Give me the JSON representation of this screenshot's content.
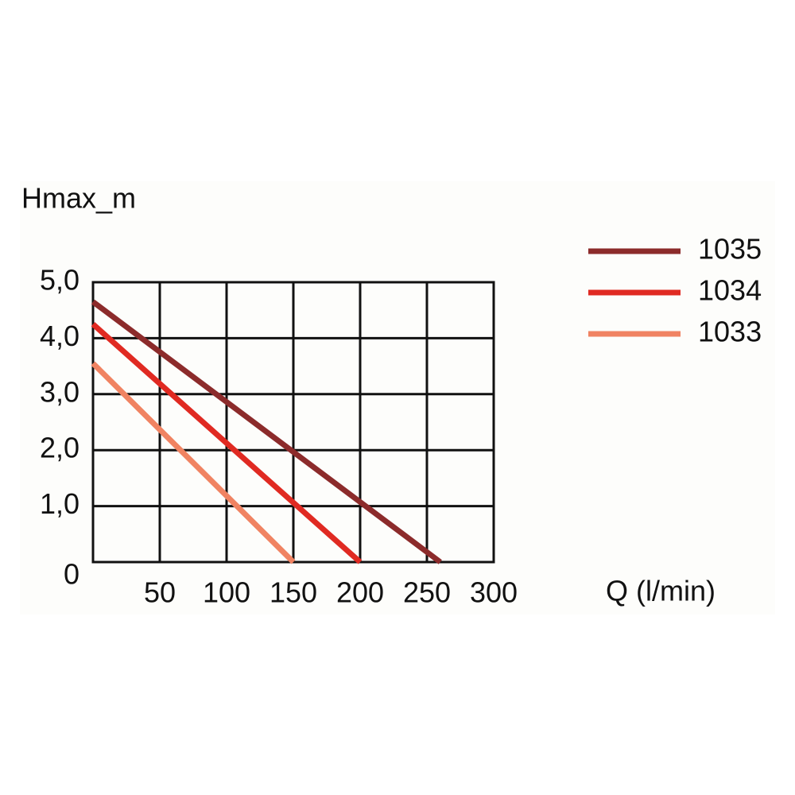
{
  "chart_data": {
    "type": "line",
    "y_label": "Hmax_m",
    "x_label": "Q (l/min)",
    "xlim": [
      0,
      300
    ],
    "xticks": [
      50,
      100,
      150,
      200,
      250,
      300
    ],
    "ylim": [
      0,
      5
    ],
    "yticks": [
      0,
      {
        "value": 1,
        "label": "1,0"
      },
      {
        "value": 2,
        "label": "2,0"
      },
      {
        "value": 3,
        "label": "3,0"
      },
      {
        "value": 4,
        "label": "4,0"
      },
      {
        "value": 5,
        "label": "5,0"
      }
    ],
    "grid": true,
    "legend": "right",
    "series": [
      {
        "name": "1035",
        "color": "#8c2b2b",
        "x": [
          0,
          260
        ],
        "values": [
          4.65,
          0
        ]
      },
      {
        "name": "1034",
        "color": "#e02a22",
        "x": [
          0,
          200
        ],
        "values": [
          4.25,
          0
        ]
      },
      {
        "name": "1033",
        "color": "#f08362",
        "x": [
          0,
          150
        ],
        "values": [
          3.55,
          0
        ]
      }
    ]
  }
}
